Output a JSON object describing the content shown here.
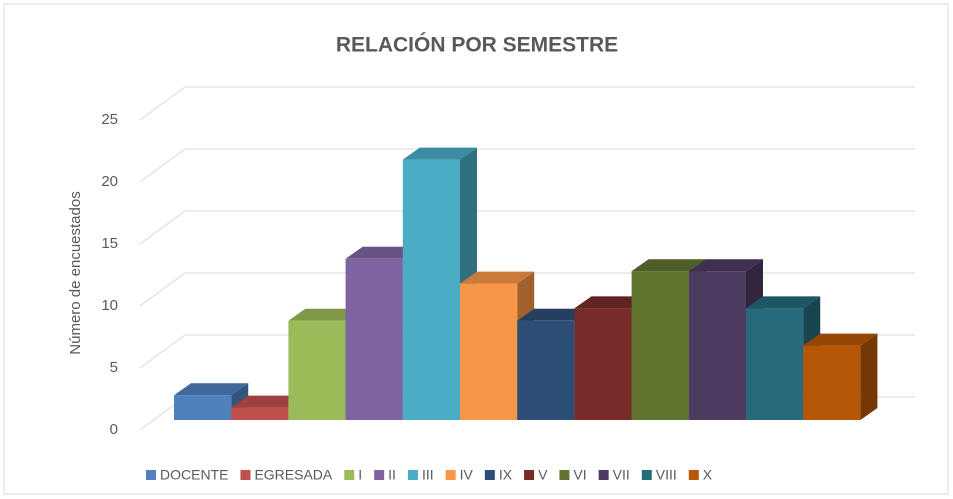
{
  "chart_data": {
    "type": "bar",
    "title": "RELACIÓN POR SEMESTRE",
    "y_label": "Número de encuestados",
    "ylim": [
      0,
      25
    ],
    "yticks": [
      0,
      5,
      10,
      15,
      20,
      25
    ],
    "grid": true,
    "series": [
      {
        "name": "DOCENTE",
        "color": "#4f81bd",
        "values": [
          2
        ]
      },
      {
        "name": "EGRESADA",
        "color": "#c0504d",
        "values": [
          1
        ]
      },
      {
        "name": "I",
        "color": "#9bbb59",
        "values": [
          8
        ]
      },
      {
        "name": "II",
        "color": "#8064a2",
        "values": [
          13
        ]
      },
      {
        "name": "III",
        "color": "#4bacc6",
        "values": [
          21
        ]
      },
      {
        "name": "IV",
        "color": "#f79646",
        "values": [
          11
        ]
      },
      {
        "name": "IX",
        "color": "#2c4d75",
        "values": [
          8
        ]
      },
      {
        "name": "V",
        "color": "#772c2a",
        "values": [
          9
        ]
      },
      {
        "name": "VI",
        "color": "#5f7530",
        "values": [
          12
        ]
      },
      {
        "name": "VII",
        "color": "#4d3b62",
        "values": [
          12
        ]
      },
      {
        "name": "VIII",
        "color": "#276a7c",
        "values": [
          9
        ]
      },
      {
        "name": "X",
        "color": "#b65708",
        "values": [
          6
        ]
      }
    ]
  }
}
